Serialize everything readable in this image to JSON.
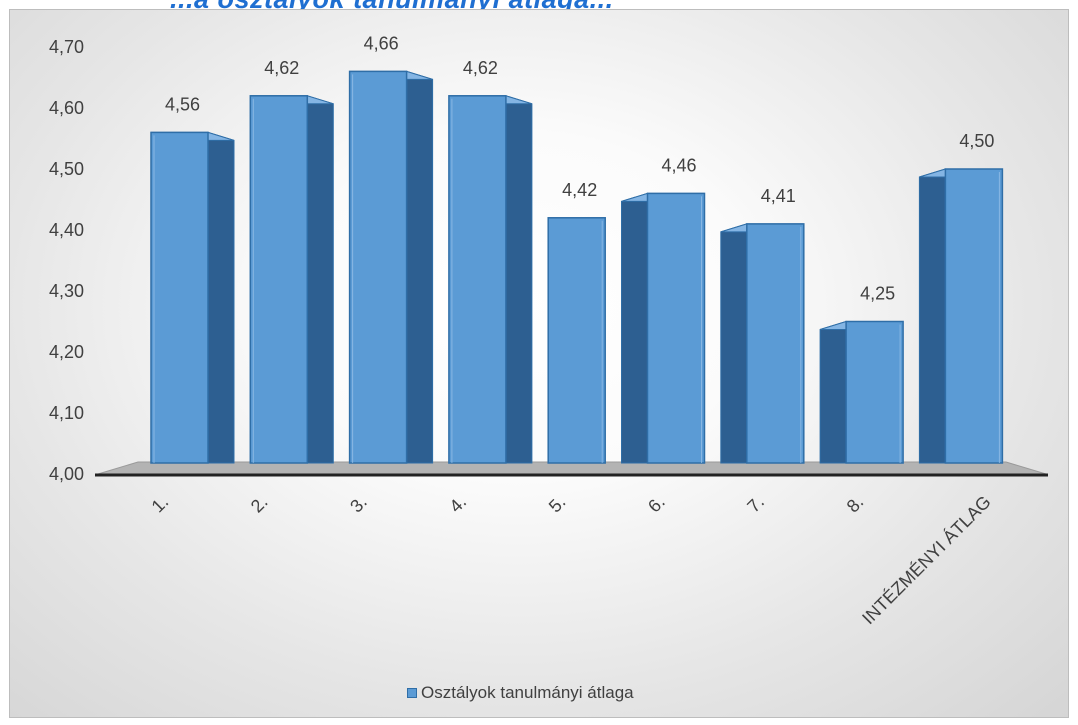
{
  "header": {
    "title_fragment": "...a osztályok tanulmányi átlaga..."
  },
  "chart_data": {
    "type": "bar",
    "title": "",
    "xlabel": "",
    "ylabel": "",
    "ylim": [
      4.0,
      4.7
    ],
    "y_ticks": [
      "4,00",
      "4,10",
      "4,20",
      "4,30",
      "4,40",
      "4,50",
      "4,60",
      "4,70"
    ],
    "y_tick_values": [
      4.0,
      4.1,
      4.2,
      4.3,
      4.4,
      4.5,
      4.6,
      4.7
    ],
    "categories": [
      "1.",
      "2.",
      "3.",
      "4.",
      "5.",
      "6.",
      "7.",
      "8.",
      "INTÉZMÉNYI ÁTLAG"
    ],
    "series": [
      {
        "name": "Osztályok tanulmányi átlaga",
        "values": [
          4.56,
          4.62,
          4.66,
          4.62,
          4.42,
          4.46,
          4.41,
          4.25,
          4.5
        ],
        "labels": [
          "4,56",
          "4,62",
          "4,66",
          "4,62",
          "4,42",
          "4,46",
          "4,41",
          "4,25",
          "4,50"
        ]
      }
    ],
    "legend_position": "bottom",
    "grid": false,
    "style": "3d-column",
    "colors": {
      "bar_front": "#5b9bd5",
      "bar_side": "#2d5f91",
      "bar_top": "#84b5e4",
      "bar_edge": "#2f6ea7",
      "floor": "#b3b3b3",
      "axis_line": "#222222",
      "text": "#404040"
    }
  }
}
